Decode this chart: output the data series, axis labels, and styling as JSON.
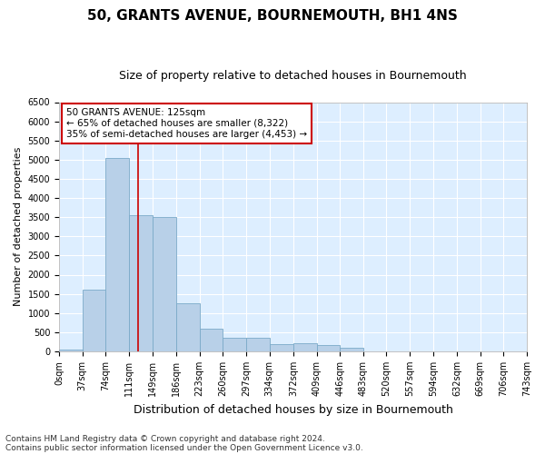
{
  "title": "50, GRANTS AVENUE, BOURNEMOUTH, BH1 4NS",
  "subtitle": "Size of property relative to detached houses in Bournemouth",
  "xlabel": "Distribution of detached houses by size in Bournemouth",
  "ylabel": "Number of detached properties",
  "footer1": "Contains HM Land Registry data © Crown copyright and database right 2024.",
  "footer2": "Contains public sector information licensed under the Open Government Licence v3.0.",
  "annotation_title": "50 GRANTS AVENUE: 125sqm",
  "annotation_line1": "← 65% of detached houses are smaller (8,322)",
  "annotation_line2": "35% of semi-detached houses are larger (4,453) →",
  "bar_color": "#b8d0e8",
  "bar_edge_color": "#7aaac8",
  "background_color": "#ddeeff",
  "fig_color": "#ffffff",
  "grid_color": "#ffffff",
  "vline_color": "#cc0000",
  "vline_x": 125,
  "ylim": [
    0,
    6500
  ],
  "bin_edges": [
    0,
    37,
    74,
    111,
    149,
    186,
    223,
    260,
    297,
    334,
    372,
    409,
    446,
    483,
    520,
    557,
    594,
    632,
    669,
    706,
    743
  ],
  "bar_heights": [
    50,
    1600,
    5050,
    3550,
    3500,
    1250,
    600,
    360,
    360,
    200,
    210,
    160,
    100,
    0,
    0,
    0,
    0,
    0,
    0,
    0
  ],
  "tick_labels": [
    "0sqm",
    "37sqm",
    "74sqm",
    "111sqm",
    "149sqm",
    "186sqm",
    "223sqm",
    "260sqm",
    "297sqm",
    "334sqm",
    "372sqm",
    "409sqm",
    "446sqm",
    "483sqm",
    "520sqm",
    "557sqm",
    "594sqm",
    "632sqm",
    "669sqm",
    "706sqm",
    "743sqm"
  ],
  "yticks": [
    0,
    500,
    1000,
    1500,
    2000,
    2500,
    3000,
    3500,
    4000,
    4500,
    5000,
    5500,
    6000,
    6500
  ],
  "annot_box_color": "#ffffff",
  "annot_box_edge": "#cc0000",
  "title_fontsize": 11,
  "subtitle_fontsize": 9,
  "xlabel_fontsize": 9,
  "ylabel_fontsize": 8,
  "tick_fontsize": 7,
  "annot_fontsize": 7.5,
  "footer_fontsize": 6.5
}
